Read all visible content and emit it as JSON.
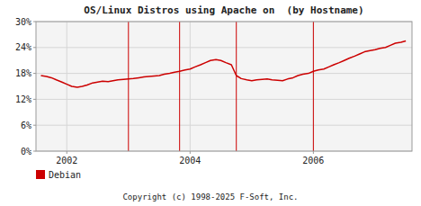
{
  "chart_data": {
    "type": "line",
    "title": "OS/Linux Distros using Apache on  (by Hostname)",
    "caption": "Copyright (c) 1998-2025 F-Soft, Inc.",
    "x": [
      2001.58,
      2001.67,
      2001.75,
      2001.83,
      2001.92,
      2002.0,
      2002.08,
      2002.17,
      2002.25,
      2002.33,
      2002.42,
      2002.5,
      2002.58,
      2002.67,
      2002.75,
      2002.83,
      2002.92,
      2003.0,
      2003.08,
      2003.17,
      2003.25,
      2003.33,
      2003.42,
      2003.5,
      2003.58,
      2003.67,
      2003.75,
      2003.83,
      2003.92,
      2004.0,
      2004.08,
      2004.17,
      2004.25,
      2004.33,
      2004.42,
      2004.5,
      2004.58,
      2004.67,
      2004.75,
      2004.83,
      2004.92,
      2005.0,
      2005.08,
      2005.17,
      2005.25,
      2005.33,
      2005.42,
      2005.5,
      2005.58,
      2005.67,
      2005.75,
      2005.83,
      2005.92,
      2006.0,
      2006.08,
      2006.17,
      2006.25,
      2006.33,
      2006.42,
      2006.5,
      2006.58,
      2006.67,
      2006.75,
      2006.83,
      2006.92,
      2007.0,
      2007.08,
      2007.17,
      2007.25,
      2007.33,
      2007.42,
      2007.5
    ],
    "series": [
      {
        "name": "Debian",
        "color": "#cc0000",
        "values": [
          17.5,
          17.3,
          17.0,
          16.5,
          16.0,
          15.5,
          15.0,
          14.8,
          15.0,
          15.3,
          15.8,
          16.0,
          16.2,
          16.1,
          16.3,
          16.5,
          16.6,
          16.7,
          16.8,
          17.0,
          17.2,
          17.3,
          17.4,
          17.5,
          17.8,
          18.0,
          18.3,
          18.5,
          18.8,
          19.0,
          19.5,
          20.0,
          20.5,
          21.0,
          21.2,
          21.0,
          20.5,
          20.0,
          17.5,
          16.8,
          16.5,
          16.3,
          16.5,
          16.6,
          16.7,
          16.5,
          16.4,
          16.3,
          16.7,
          17.0,
          17.5,
          17.8,
          18.0,
          18.5,
          18.8,
          19.0,
          19.5,
          20.0,
          20.5,
          21.0,
          21.5,
          22.0,
          22.5,
          23.0,
          23.3,
          23.5,
          23.8,
          24.0,
          24.5,
          25.0,
          25.2,
          25.5
        ]
      }
    ],
    "vlines": {
      "x": [
        2003.0,
        2003.83,
        2004.75,
        2006.0
      ],
      "color": "#cc0000"
    },
    "xlim": [
      2001.5,
      2007.6
    ],
    "xticks": [
      2002,
      2004,
      2006
    ],
    "ylim": [
      0,
      30
    ],
    "yticks": [
      {
        "value": 0,
        "label": "0%"
      },
      {
        "value": 6,
        "label": "6%"
      },
      {
        "value": 12,
        "label": "12%"
      },
      {
        "value": 18,
        "label": "18%"
      },
      {
        "value": 24,
        "label": "24%"
      },
      {
        "value": 30,
        "label": "30%"
      }
    ],
    "grid": true,
    "legend": "bottom-left"
  }
}
